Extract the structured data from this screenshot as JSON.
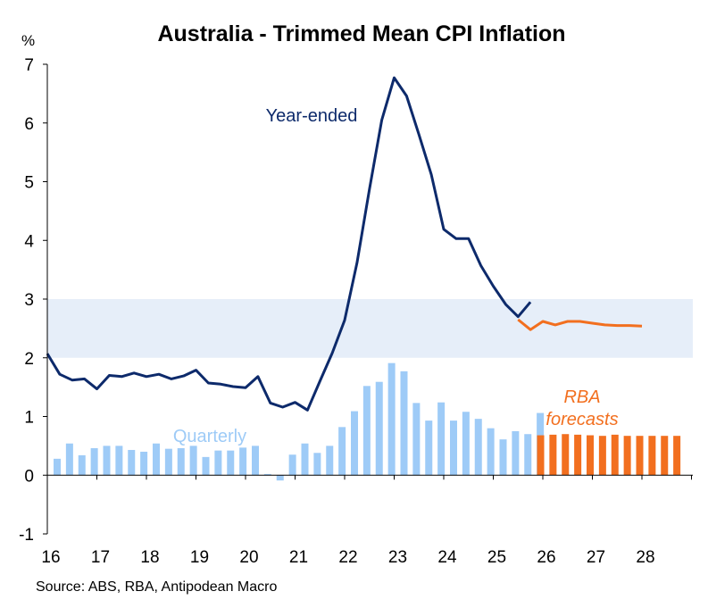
{
  "chart_data": {
    "type": "bar+line",
    "title": "Australia - Trimmed Mean CPI Inflation",
    "ylabel": "%",
    "ylim": [
      -1,
      7
    ],
    "yticks": [
      -1,
      0,
      1,
      2,
      3,
      4,
      5,
      6,
      7
    ],
    "xlim": [
      16,
      29.0
    ],
    "xtick_values": [
      16,
      17,
      18,
      19,
      20,
      21,
      22,
      23,
      24,
      25,
      26,
      27,
      28
    ],
    "xtick_labels": [
      "16",
      "17",
      "18",
      "19",
      "20",
      "21",
      "22",
      "23",
      "24",
      "25",
      "26",
      "27",
      "28"
    ],
    "target_band": [
      2,
      3
    ],
    "colors": {
      "year_ended": "#0d2a6b",
      "forecast": "#f26f1f",
      "quarterly": "#9ecbf7",
      "band": "#e6eef9",
      "axis": "#000000"
    },
    "year_ended": {
      "name": "Year-ended",
      "x": [
        16.0,
        16.25,
        16.5,
        16.75,
        17.0,
        17.25,
        17.5,
        17.75,
        18.0,
        18.25,
        18.5,
        18.75,
        19.0,
        19.25,
        19.5,
        19.75,
        20.0,
        20.25,
        20.5,
        20.75,
        21.0,
        21.25,
        21.5,
        21.75,
        22.0,
        22.25,
        22.5,
        22.75,
        23.0,
        23.25,
        23.5,
        23.75,
        24.0,
        24.25,
        24.5,
        24.75,
        25.0,
        25.25,
        25.5,
        25.75
      ],
      "values": [
        2.07,
        1.72,
        1.62,
        1.64,
        1.47,
        1.7,
        1.68,
        1.74,
        1.68,
        1.72,
        1.64,
        1.69,
        1.79,
        1.57,
        1.55,
        1.51,
        1.49,
        1.68,
        1.23,
        1.16,
        1.24,
        1.11,
        1.6,
        2.08,
        2.64,
        3.62,
        4.87,
        6.05,
        6.77,
        6.46,
        5.8,
        5.12,
        4.19,
        4.03,
        4.03,
        3.57,
        3.22,
        2.91,
        2.7,
        2.95
      ]
    },
    "forecast": {
      "name": "RBA forecasts",
      "x": [
        25.5,
        25.75,
        26.0,
        26.25,
        26.5,
        26.75,
        27.0,
        27.25,
        27.5,
        27.75,
        28.0
      ],
      "values": [
        2.65,
        2.48,
        2.62,
        2.56,
        2.62,
        2.62,
        2.59,
        2.56,
        2.55,
        2.55,
        2.54
      ]
    },
    "quarterly": {
      "name": "Quarterly",
      "x": [
        16.0,
        16.25,
        16.5,
        16.75,
        17.0,
        17.25,
        17.5,
        17.75,
        18.0,
        18.25,
        18.5,
        18.75,
        19.0,
        19.25,
        19.5,
        19.75,
        20.0,
        20.25,
        20.5,
        20.75,
        21.0,
        21.25,
        21.5,
        21.75,
        22.0,
        22.25,
        22.5,
        22.75,
        23.0,
        23.25,
        23.5,
        23.75,
        24.0,
        24.25,
        24.5,
        24.75,
        25.0,
        25.25,
        25.5,
        25.75
      ],
      "values": [
        0.28,
        0.54,
        0.34,
        0.46,
        0.5,
        0.5,
        0.43,
        0.4,
        0.54,
        0.45,
        0.46,
        0.5,
        0.31,
        0.42,
        0.42,
        0.47,
        0.5,
        0.02,
        -0.09,
        0.35,
        0.54,
        0.38,
        0.5,
        0.82,
        1.09,
        1.52,
        1.59,
        1.91,
        1.77,
        1.23,
        0.93,
        1.24,
        0.93,
        1.08,
        0.96,
        0.8,
        0.61,
        0.75,
        0.7,
        1.06
      ]
    },
    "quarterly_forecast": {
      "name": "RBA forecasts",
      "x": [
        26.0,
        26.25,
        26.5,
        26.75,
        27.0,
        27.25,
        27.5,
        27.75,
        28.0,
        28.25,
        28.5,
        28.75
      ],
      "values": [
        0.68,
        0.69,
        0.7,
        0.69,
        0.68,
        0.67,
        0.69,
        0.67,
        0.67,
        0.67,
        0.67,
        0.67
      ]
    },
    "annotations": {
      "year_ended": "Year-ended",
      "quarterly": "Quarterly",
      "rba_line1": "RBA",
      "rba_line2": "forecasts"
    },
    "source": "Source: ABS, RBA, Antipodean Macro"
  }
}
